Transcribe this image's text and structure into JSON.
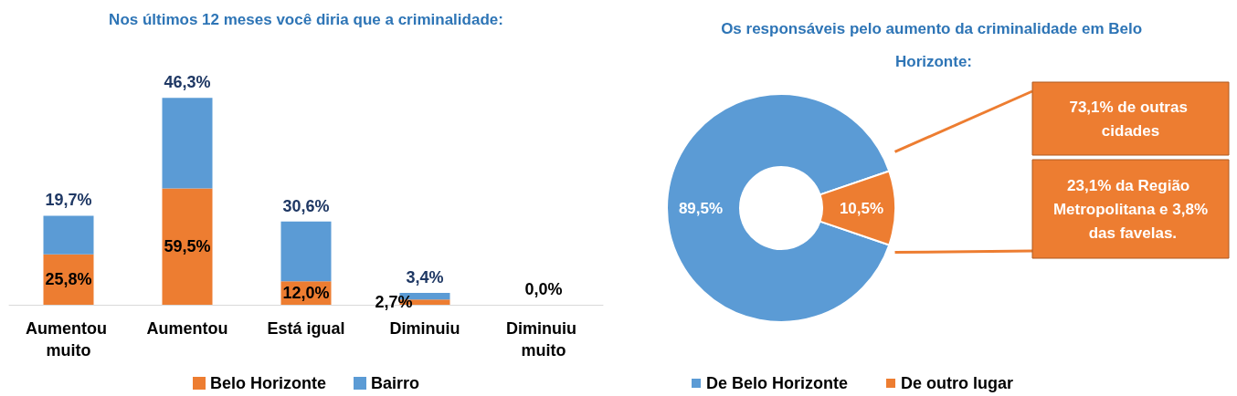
{
  "chart_data": [
    {
      "type": "bar",
      "title": "Nos últimos 12 meses você diria que a criminalidade:",
      "categories": [
        "Aumentou muito",
        "Aumentou",
        "Está igual",
        "Diminuiu",
        "Diminuiu muito"
      ],
      "stacked": true,
      "legend": "bottom",
      "tick_labels": "x",
      "series": [
        {
          "name": "Belo Horizonte",
          "color": "#ed7d31",
          "values": [
            25.8,
            59.5,
            12.0,
            2.7,
            0.0
          ],
          "value_labels": [
            "25,8%",
            "59,5%",
            "12,0%",
            "2,7%",
            "0,0%"
          ]
        },
        {
          "name": "Bairro",
          "color": "#5b9bd5",
          "values": [
            19.7,
            46.3,
            30.6,
            3.4,
            0.0
          ],
          "value_labels": [
            "19,7%",
            "46,3%",
            "30,6%",
            "3,4%",
            null
          ]
        }
      ]
    },
    {
      "type": "donut",
      "title": "Os responsáveis pelo aumento da criminalidade em Belo Horizonte:",
      "categories": [
        "De Belo Horizonte",
        "De outro lugar"
      ],
      "values": [
        89.5,
        10.5
      ],
      "colors": [
        "#5b9bd5",
        "#ed7d31"
      ],
      "value_labels": [
        "89,5%",
        "10,5%"
      ],
      "legend": "bottom",
      "annotations": [
        "73,1% de outras cidades",
        "23,1% da Região Metropolitana e 3,8% das favelas."
      ]
    }
  ]
}
